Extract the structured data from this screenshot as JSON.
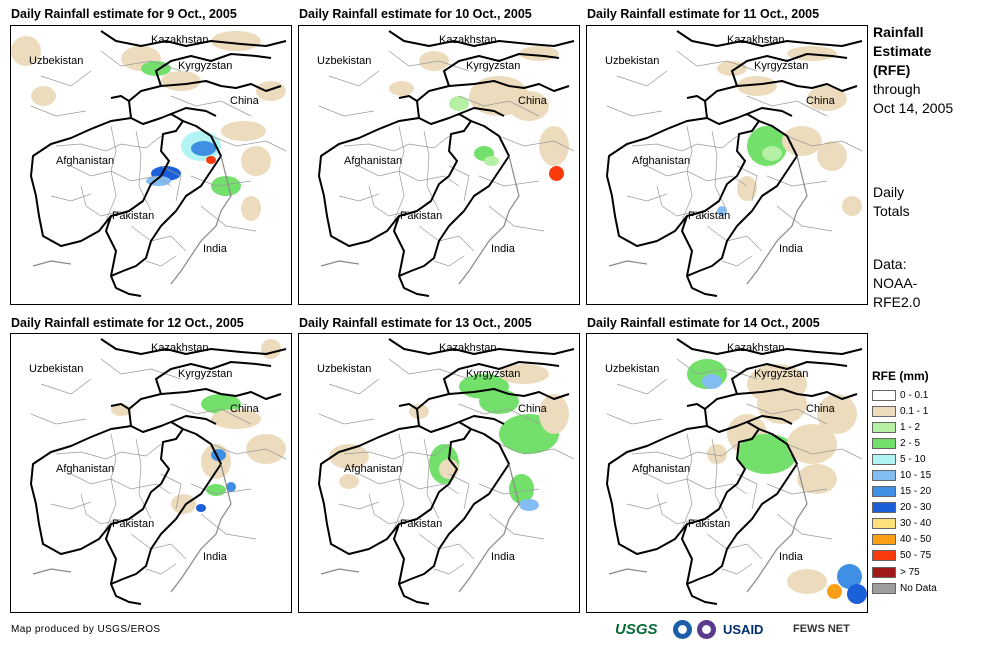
{
  "panels": [
    {
      "title": "Daily Rainfall estimate for 9 Oct., 2005"
    },
    {
      "title": "Daily Rainfall estimate for 10 Oct., 2005"
    },
    {
      "title": "Daily Rainfall estimate for 11 Oct., 2005"
    },
    {
      "title": "Daily Rainfall estimate for 12 Oct., 2005"
    },
    {
      "title": "Daily Rainfall estimate for 13 Oct., 2005"
    },
    {
      "title": "Daily Rainfall estimate for 14 Oct., 2005"
    }
  ],
  "map_labels": {
    "kazakhstan": "Kazakhstan",
    "uzbekistan": "Uzbekistan",
    "kyrgyzstan": "Kyrgyzstan",
    "china": "China",
    "afghanistan": "Afghanistan",
    "pakistan": "Pakistan",
    "india": "India"
  },
  "side": {
    "title_line1": "Rainfall",
    "title_line2": "Estimate",
    "title_line3": "(RFE)",
    "through": "through",
    "date": "Oct 14, 2005",
    "daily": "Daily",
    "totals": "Totals",
    "data_label": "Data:",
    "data_source1": "NOAA-",
    "data_source2": "RFE2.0"
  },
  "legend": {
    "title": "RFE (mm)",
    "items": [
      {
        "label": "0 - 0.1",
        "color": "#ffffff"
      },
      {
        "label": "0.1 - 1",
        "color": "#ecdcbd"
      },
      {
        "label": "1 - 2",
        "color": "#b5f0a5"
      },
      {
        "label": "2 - 5",
        "color": "#72e06a"
      },
      {
        "label": "5 - 10",
        "color": "#b2f3f3"
      },
      {
        "label": "10 - 15",
        "color": "#83bdf2"
      },
      {
        "label": "15 - 20",
        "color": "#3f8fe5"
      },
      {
        "label": "20 - 30",
        "color": "#1b5fd9"
      },
      {
        "label": "30 - 40",
        "color": "#fde07a"
      },
      {
        "label": "40 - 50",
        "color": "#fb9f18"
      },
      {
        "label": "50 - 75",
        "color": "#f83a0c"
      },
      {
        "label": "> 75",
        "color": "#a11a1a"
      },
      {
        "label": "No Data",
        "color": "#9e9e9e"
      }
    ]
  },
  "credit": "Map produced by USGS/EROS",
  "logos": {
    "usgs": "USGS",
    "usaid": "USAID",
    "fews": "FEWS NET"
  }
}
